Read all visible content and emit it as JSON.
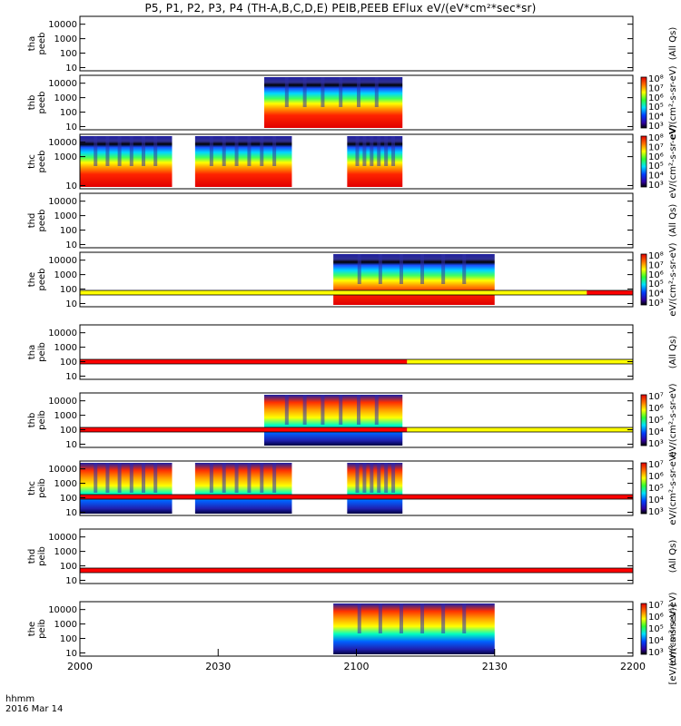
{
  "title": "P5, P1, P2, P3, P4 (TH-A,B,C,D,E) PEIB,PEEB EFlux eV/(eV*cm²*sec*sr)",
  "time_label": {
    "line1": "hhmm",
    "line2": "2016 Mar 14"
  },
  "chart_data": {
    "type": "heatmap",
    "x": {
      "ticks": [
        "2000",
        "2030",
        "2100",
        "2130",
        "2200"
      ],
      "range": [
        "20:00",
        "22:00"
      ]
    },
    "y_scale": "log",
    "y_ticks": [
      "10",
      "100",
      "1000",
      "10000"
    ],
    "panels": [
      {
        "name": "tha\npeeb",
        "y_ticks": [
          "10",
          "100",
          "1000",
          "10000"
        ],
        "data_present": false,
        "colorbar_label": "(All Qs)"
      },
      {
        "name": "thb\npeeb",
        "y_ticks": [
          "10",
          "100",
          "1000",
          "10000"
        ],
        "data_intervals_hhmm": [
          [
            "20:40",
            "21:10"
          ]
        ],
        "colorbar_ticks": [
          "10³",
          "10⁴",
          "10⁵",
          "10⁶",
          "10⁷",
          "10⁸"
        ],
        "colorbar_label": "eV/(cm²-s-sr-eV)"
      },
      {
        "name": "thc\npeeb",
        "y_ticks": [
          "10",
          "1000",
          "10000"
        ],
        "data_intervals_hhmm": [
          [
            "20:00",
            "20:20"
          ],
          [
            "20:25",
            "20:46"
          ],
          [
            "20:58",
            "21:10"
          ]
        ],
        "colorbar_ticks": [
          "10³",
          "10⁴",
          "10⁵",
          "10⁶",
          "10⁷",
          "10⁸"
        ],
        "colorbar_label": "eV/(cm²-s-sr-eV)"
      },
      {
        "name": "thd\npeeb",
        "y_ticks": [
          "10",
          "100",
          "1000",
          "10000"
        ],
        "data_present": false,
        "colorbar_label": "(All Qs)"
      },
      {
        "name": "the\npeeb",
        "y_ticks": [
          "10",
          "100",
          "1000",
          "10000"
        ],
        "data_intervals_hhmm": [
          [
            "20:55",
            "21:30"
          ]
        ],
        "colorbar_ticks": [
          "10³",
          "10⁴",
          "10⁵",
          "10⁶",
          "10⁷",
          "10⁸"
        ],
        "colorbar_label": "eV/(cm²-s-sr-eV)"
      },
      {
        "name": "tha\npeib",
        "y_ticks": [
          "10",
          "100",
          "1000",
          "10000"
        ],
        "data_present": false,
        "colorbar_label": "(All Qs)"
      },
      {
        "name": "thb\npeib",
        "y_ticks": [
          "10",
          "100",
          "1000",
          "10000"
        ],
        "data_intervals_hhmm": [
          [
            "20:40",
            "21:10"
          ]
        ],
        "colorbar_ticks": [
          "10³",
          "10⁴",
          "10⁵",
          "10⁶",
          "10⁷"
        ],
        "colorbar_label": "eV/(cm²-s-sr-eV)"
      },
      {
        "name": "thc\npeib",
        "y_ticks": [
          "10",
          "100",
          "1000",
          "10000"
        ],
        "data_intervals_hhmm": [
          [
            "20:00",
            "20:20"
          ],
          [
            "20:25",
            "20:46"
          ],
          [
            "20:58",
            "21:10"
          ]
        ],
        "colorbar_ticks": [
          "10³",
          "10⁴",
          "10⁵",
          "10⁶",
          "10⁷"
        ],
        "colorbar_label": "eV/(cm²-s-sr-eV)"
      },
      {
        "name": "thd\npeib",
        "y_ticks": [
          "10",
          "100",
          "1000",
          "10000"
        ],
        "data_present": false,
        "colorbar_label": "(All Qs)"
      },
      {
        "name": "the\npeib",
        "y_ticks": [
          "10",
          "100",
          "1000",
          "10000"
        ],
        "data_intervals_hhmm": [
          [
            "20:55",
            "21:30"
          ]
        ],
        "colorbar_ticks": [
          "10³",
          "10⁴",
          "10⁵",
          "10⁶",
          "10⁷"
        ],
        "colorbar_label": "eV/(cm²-s-sr-eV)"
      }
    ],
    "mode_bars": [
      {
        "after_panel": 5,
        "segments": [
          {
            "from": "20:00",
            "to": "21:50",
            "color": "#ffff00"
          },
          {
            "from": "21:50",
            "to": "22:00",
            "color": "#ff0000"
          }
        ]
      },
      {
        "after_panel": 6,
        "segments": [
          {
            "from": "20:00",
            "to": "21:11",
            "color": "#ff0000"
          },
          {
            "from": "21:11",
            "to": "22:00",
            "color": "#ffff00"
          }
        ]
      },
      {
        "after_panel": 7,
        "segments": [
          {
            "from": "20:00",
            "to": "21:11",
            "color": "#ff0000"
          },
          {
            "from": "21:11",
            "to": "22:00",
            "color": "#ffff00"
          }
        ]
      },
      {
        "after_panel": 8,
        "segments": [
          {
            "from": "20:00",
            "to": "22:00",
            "color": "#ff0000"
          }
        ]
      },
      {
        "after_panel": 9,
        "segments": [
          {
            "from": "20:00",
            "to": "22:00",
            "color": "#ff0000"
          }
        ]
      }
    ],
    "colorbar_units": "[eV/(cm²-s-sr-eV)]"
  }
}
